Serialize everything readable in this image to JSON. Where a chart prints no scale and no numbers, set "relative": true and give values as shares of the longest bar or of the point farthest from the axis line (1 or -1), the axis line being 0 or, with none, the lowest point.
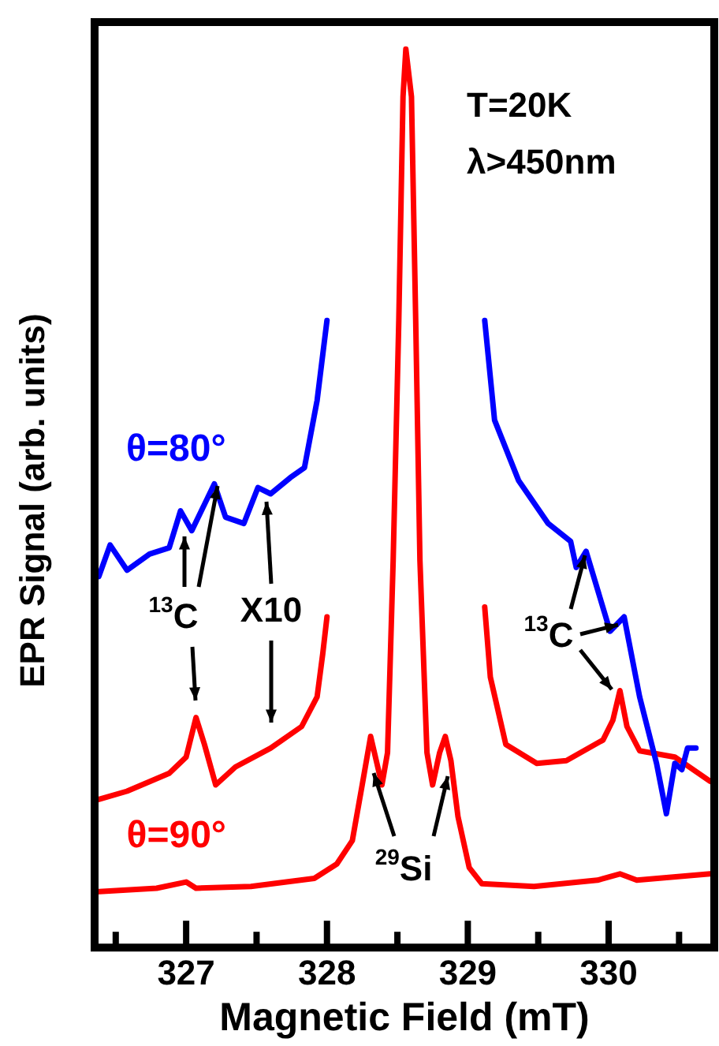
{
  "chart_data": {
    "type": "line",
    "relative": true,
    "xlabel": "Magnetic Field (mT)",
    "ylabel": "EPR Signal (arb. units)",
    "xlim": [
      326.35,
      330.75
    ],
    "xticks": [
      {
        "value": 326.5,
        "label": null
      },
      327,
      {
        "value": 327.5,
        "label": null
      },
      328,
      {
        "value": 328.5,
        "label": null
      },
      329,
      {
        "value": 329.5,
        "label": null
      },
      330,
      {
        "value": 330.5,
        "label": null
      }
    ],
    "legend": false,
    "grid": false,
    "marker": "none",
    "line_style": "solid",
    "annotations": [
      "T=20K",
      "λ>450nm",
      "$^{13}$C",
      "X10",
      "$^{13}$C",
      "$^{29}$Si"
    ],
    "series": [
      {
        "name": "θ=80°",
        "color": "#0000ff",
        "x": [
          326.38,
          326.46,
          326.58,
          326.74,
          326.88,
          326.96,
          327.04,
          327.2,
          327.28,
          327.41,
          327.51,
          327.6,
          327.74,
          327.84,
          327.93,
          328.0,
          328.5,
          329.12,
          329.19,
          329.36,
          329.57,
          329.73,
          329.77,
          329.84,
          330.01,
          330.11,
          330.22,
          330.34,
          330.41,
          330.47,
          330.52,
          330.56,
          330.62
        ],
        "values": [
          0.413,
          0.448,
          0.42,
          0.438,
          0.445,
          0.486,
          0.464,
          0.516,
          0.479,
          0.472,
          0.512,
          0.505,
          0.523,
          0.534,
          0.609,
          0.698,
          null,
          0.698,
          0.587,
          0.52,
          0.472,
          0.452,
          0.423,
          0.441,
          0.352,
          0.368,
          0.279,
          0.205,
          0.149,
          0.205,
          0.198,
          0.222,
          0.222
        ]
      },
      {
        "color": "#ff0000",
        "x": [
          326.36,
          326.58,
          326.88,
          327.0,
          327.07,
          327.13,
          327.21,
          327.35,
          327.6,
          327.82,
          327.93,
          327.97,
          328.0,
          328.5,
          329.12,
          329.16,
          329.27,
          329.49,
          329.7,
          329.96,
          330.03,
          330.08,
          330.13,
          330.22,
          330.47,
          330.72
        ],
        "values": [
          0.164,
          0.174,
          0.194,
          0.212,
          0.256,
          0.226,
          0.181,
          0.201,
          0.222,
          0.246,
          0.279,
          0.327,
          0.368,
          null,
          0.379,
          0.301,
          0.226,
          0.205,
          0.208,
          0.231,
          0.253,
          0.286,
          0.246,
          0.219,
          0.212,
          0.185
        ]
      },
      {
        "name": "θ=90°",
        "color": "#ff0000",
        "x": [
          326.36,
          326.79,
          327.0,
          327.07,
          327.46,
          327.91,
          328.07,
          328.18,
          328.25,
          328.31,
          328.35,
          328.39,
          328.43,
          328.47,
          328.51,
          328.54,
          328.56,
          328.6,
          328.63,
          328.66,
          328.71,
          328.75,
          328.8,
          328.84,
          328.88,
          328.93,
          329.01,
          329.1,
          329.47,
          329.92,
          330.08,
          330.2,
          330.72
        ],
        "values": [
          0.062,
          0.066,
          0.073,
          0.066,
          0.068,
          0.077,
          0.093,
          0.119,
          0.181,
          0.235,
          0.208,
          0.181,
          0.217,
          0.431,
          0.698,
          0.947,
          1,
          0.947,
          0.698,
          0.431,
          0.217,
          0.181,
          0.217,
          0.235,
          0.208,
          0.146,
          0.089,
          0.071,
          0.068,
          0.075,
          0.082,
          0.075,
          0.082
        ]
      }
    ]
  }
}
